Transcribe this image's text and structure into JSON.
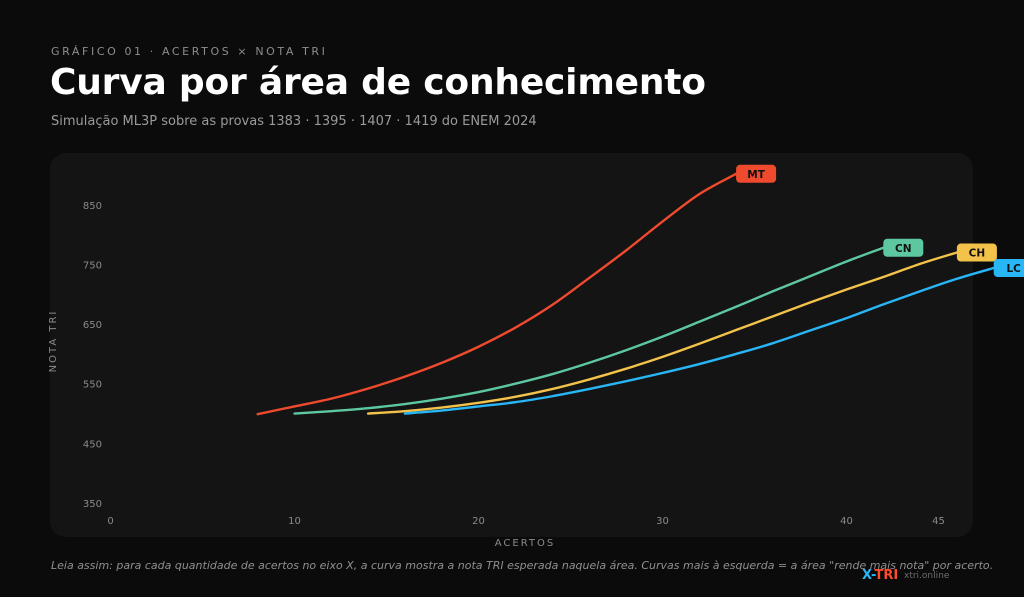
{
  "header": {
    "eyebrow": "GRÁFICO 01 · ACERTOS × NOTA TRI",
    "title": "Curva por área de conhecimento",
    "subtitle": "Simulação ML3P sobre as provas 1383 · 1395 · 1407 · 1419 do ENEM 2024"
  },
  "footer": {
    "note": "Leia assim: para cada quantidade de acertos no eixo X, a curva mostra a nota TRI esperada naquela área. Curvas mais à esquerda = a área \"rende mais nota\" por acerto.",
    "brand_x": "X-",
    "brand_tri": "TRI",
    "brand_url": "xtri.online"
  },
  "colors": {
    "background": "#0b0b0b",
    "panel": "#141414",
    "axis_text": "#8a8a8a",
    "MT": "#f04a2e",
    "CN": "#5dc8a0",
    "CH": "#f2c24a",
    "LC": "#29b6f6"
  },
  "chart_data": {
    "type": "line",
    "xlabel": "ACERTOS",
    "ylabel": "NOTA TRI",
    "xlim": [
      0,
      45
    ],
    "ylim": [
      350,
      900
    ],
    "x_ticks": [
      0,
      10,
      20,
      30,
      40,
      45
    ],
    "y_ticks": [
      350,
      450,
      550,
      650,
      750,
      850
    ],
    "grid": false,
    "series": [
      {
        "name": "MT",
        "color": "#f04a2e",
        "x": [
          8,
          10,
          12,
          14,
          16,
          18,
          20,
          22,
          24,
          26,
          28,
          30,
          32,
          34
        ],
        "y": [
          499,
          512,
          525,
          542,
          562,
          585,
          612,
          644,
          682,
          727,
          773,
          822,
          868,
          902
        ]
      },
      {
        "name": "CN",
        "color": "#5dc8a0",
        "x": [
          10,
          12,
          14,
          16,
          18,
          20,
          22,
          24,
          26,
          28,
          30,
          32,
          34,
          36,
          38,
          40,
          42
        ],
        "y": [
          500,
          504,
          509,
          516,
          525,
          536,
          550,
          566,
          585,
          606,
          629,
          654,
          679,
          705,
          730,
          755,
          778
        ]
      },
      {
        "name": "CH",
        "color": "#f2c24a",
        "x": [
          14,
          16,
          18,
          20,
          22,
          24,
          26,
          28,
          30,
          32,
          34,
          36,
          38,
          40,
          42,
          44,
          46
        ],
        "y": [
          500,
          504,
          510,
          518,
          528,
          541,
          557,
          575,
          595,
          617,
          640,
          663,
          686,
          708,
          729,
          751,
          770
        ]
      },
      {
        "name": "LC",
        "color": "#29b6f6",
        "x": [
          16,
          18,
          20,
          22,
          24,
          26,
          28,
          30,
          32,
          34,
          36,
          38,
          40,
          42,
          44,
          46,
          48
        ],
        "y": [
          500,
          505,
          512,
          519,
          529,
          541,
          554,
          568,
          583,
          600,
          618,
          639,
          660,
          683,
          705,
          726,
          744
        ]
      }
    ]
  }
}
